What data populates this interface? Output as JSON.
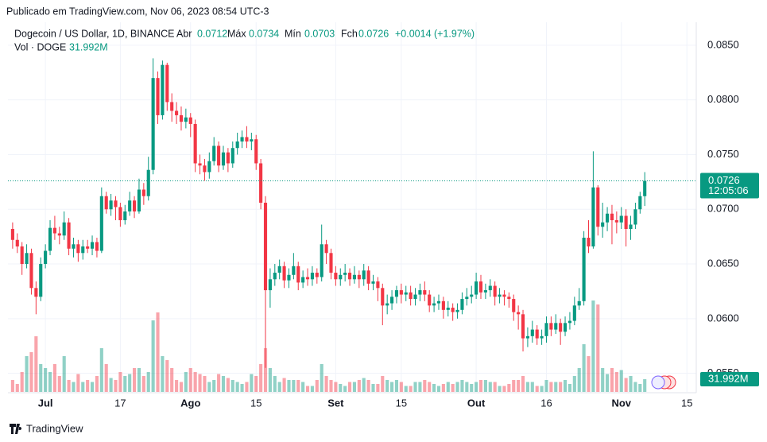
{
  "header": {
    "published": "Publicado em TradingView.com, Nov 06, 2023 08:54 UTC-3",
    "symbol": "Dogecoin / US Dollar, 1D, BINANCE",
    "open_label": "Abr",
    "high_label": "Máx",
    "low_label": "Mín",
    "close_label": "Fch",
    "change": "+0.0014 (+1.97%)",
    "volume_title": "Vol · DOGE",
    "volume": "31.992M",
    "countdown": "12:05:06"
  },
  "footer": {
    "brand": "TradingView"
  },
  "chart_data": {
    "type": "candlestick",
    "x": [
      "2023-06-24",
      "2023-06-25",
      "2023-06-26",
      "2023-06-27",
      "2023-06-28",
      "2023-06-29",
      "2023-06-30",
      "2023-07-01",
      "2023-07-02",
      "2023-07-03",
      "2023-07-04",
      "2023-07-05",
      "2023-07-06",
      "2023-07-07",
      "2023-07-08",
      "2023-07-09",
      "2023-07-10",
      "2023-07-11",
      "2023-07-12",
      "2023-07-13",
      "2023-07-14",
      "2023-07-15",
      "2023-07-16",
      "2023-07-17",
      "2023-07-18",
      "2023-07-19",
      "2023-07-20",
      "2023-07-21",
      "2023-07-22",
      "2023-07-23",
      "2023-07-24",
      "2023-07-25",
      "2023-07-26",
      "2023-07-27",
      "2023-07-28",
      "2023-07-29",
      "2023-07-30",
      "2023-07-31",
      "2023-08-01",
      "2023-08-02",
      "2023-08-03",
      "2023-08-04",
      "2023-08-05",
      "2023-08-06",
      "2023-08-07",
      "2023-08-08",
      "2023-08-09",
      "2023-08-10",
      "2023-08-11",
      "2023-08-12",
      "2023-08-13",
      "2023-08-14",
      "2023-08-15",
      "2023-08-16",
      "2023-08-17",
      "2023-08-18",
      "2023-08-19",
      "2023-08-20",
      "2023-08-21",
      "2023-08-22",
      "2023-08-23",
      "2023-08-24",
      "2023-08-25",
      "2023-08-26",
      "2023-08-27",
      "2023-08-28",
      "2023-08-29",
      "2023-08-30",
      "2023-08-31",
      "2023-09-01",
      "2023-09-02",
      "2023-09-03",
      "2023-09-04",
      "2023-09-05",
      "2023-09-06",
      "2023-09-07",
      "2023-09-08",
      "2023-09-09",
      "2023-09-10",
      "2023-09-11",
      "2023-09-12",
      "2023-09-13",
      "2023-09-14",
      "2023-09-15",
      "2023-09-16",
      "2023-09-17",
      "2023-09-18",
      "2023-09-19",
      "2023-09-20",
      "2023-09-21",
      "2023-09-22",
      "2023-09-23",
      "2023-09-24",
      "2023-09-25",
      "2023-09-26",
      "2023-09-27",
      "2023-09-28",
      "2023-09-29",
      "2023-09-30",
      "2023-10-01",
      "2023-10-02",
      "2023-10-03",
      "2023-10-04",
      "2023-10-05",
      "2023-10-06",
      "2023-10-07",
      "2023-10-08",
      "2023-10-09",
      "2023-10-10",
      "2023-10-11",
      "2023-10-12",
      "2023-10-13",
      "2023-10-14",
      "2023-10-15",
      "2023-10-16",
      "2023-10-17",
      "2023-10-18",
      "2023-10-19",
      "2023-10-20",
      "2023-10-21",
      "2023-10-22",
      "2023-10-23",
      "2023-10-24",
      "2023-10-25",
      "2023-10-26",
      "2023-10-27",
      "2023-10-28",
      "2023-10-29",
      "2023-10-30",
      "2023-10-31",
      "2023-11-01",
      "2023-11-02",
      "2023-11-03",
      "2023-11-04",
      "2023-11-05",
      "2023-11-06"
    ],
    "open": [
      0.0682,
      0.0672,
      0.0666,
      0.065,
      0.066,
      0.0628,
      0.062,
      0.065,
      0.0662,
      0.0683,
      0.0678,
      0.0676,
      0.0688,
      0.0664,
      0.0668,
      0.066,
      0.0666,
      0.0664,
      0.067,
      0.0662,
      0.0712,
      0.07,
      0.0708,
      0.0702,
      0.069,
      0.0698,
      0.0708,
      0.0698,
      0.0718,
      0.0712,
      0.0736,
      0.082,
      0.0786,
      0.0832,
      0.0798,
      0.079,
      0.0786,
      0.078,
      0.0784,
      0.0778,
      0.0742,
      0.074,
      0.0734,
      0.0744,
      0.0758,
      0.074,
      0.0752,
      0.0742,
      0.0756,
      0.0762,
      0.0766,
      0.0762,
      0.0764,
      0.0742,
      0.0706,
      0.0626,
      0.0636,
      0.0642,
      0.0648,
      0.0635,
      0.064,
      0.0648,
      0.0633,
      0.0638,
      0.0636,
      0.0642,
      0.0638,
      0.0668,
      0.066,
      0.0642,
      0.0636,
      0.064,
      0.0642,
      0.0636,
      0.064,
      0.0636,
      0.0644,
      0.0632,
      0.0634,
      0.0628,
      0.0612,
      0.0614,
      0.062,
      0.0626,
      0.0622,
      0.0624,
      0.0618,
      0.0622,
      0.0626,
      0.0622,
      0.0612,
      0.0614,
      0.0616,
      0.0608,
      0.061,
      0.0606,
      0.0608,
      0.0618,
      0.062,
      0.0622,
      0.0634,
      0.0624,
      0.0626,
      0.063,
      0.062,
      0.0622,
      0.062,
      0.0618,
      0.0606,
      0.0604,
      0.0582,
      0.0584,
      0.059,
      0.0582,
      0.0584,
      0.0596,
      0.059,
      0.0596,
      0.0588,
      0.0596,
      0.0598,
      0.0612,
      0.0616,
      0.0674,
      0.0666,
      0.072,
      0.0684,
      0.0688,
      0.0696,
      0.069,
      0.0688,
      0.0694,
      0.0682,
      0.0686,
      0.07,
      0.0712
    ],
    "high": [
      0.0688,
      0.0678,
      0.067,
      0.0668,
      0.0664,
      0.0634,
      0.0656,
      0.0668,
      0.069,
      0.0694,
      0.0684,
      0.0698,
      0.0692,
      0.0674,
      0.0672,
      0.0672,
      0.0672,
      0.0676,
      0.0674,
      0.072,
      0.0716,
      0.0714,
      0.0712,
      0.0706,
      0.0704,
      0.0716,
      0.0712,
      0.0728,
      0.0724,
      0.0748,
      0.0838,
      0.0826,
      0.0836,
      0.0834,
      0.0806,
      0.0798,
      0.0794,
      0.0792,
      0.0788,
      0.0782,
      0.075,
      0.0746,
      0.0752,
      0.0766,
      0.0762,
      0.0758,
      0.0756,
      0.0762,
      0.077,
      0.0772,
      0.0776,
      0.077,
      0.0768,
      0.0746,
      0.0712,
      0.0646,
      0.065,
      0.0654,
      0.0652,
      0.0646,
      0.066,
      0.0652,
      0.0644,
      0.0646,
      0.0648,
      0.0646,
      0.0686,
      0.0672,
      0.0664,
      0.0648,
      0.0646,
      0.065,
      0.0646,
      0.0648,
      0.0644,
      0.065,
      0.0648,
      0.064,
      0.0638,
      0.0632,
      0.0622,
      0.0626,
      0.063,
      0.0632,
      0.063,
      0.063,
      0.0628,
      0.0632,
      0.0634,
      0.0626,
      0.062,
      0.0622,
      0.062,
      0.0616,
      0.0614,
      0.0614,
      0.0624,
      0.0628,
      0.063,
      0.0642,
      0.064,
      0.0632,
      0.0636,
      0.0634,
      0.0628,
      0.0626,
      0.0624,
      0.0622,
      0.0612,
      0.0608,
      0.0592,
      0.0598,
      0.0594,
      0.059,
      0.0602,
      0.0602,
      0.0604,
      0.06,
      0.0602,
      0.0606,
      0.062,
      0.0628,
      0.068,
      0.069,
      0.0753,
      0.0722,
      0.0706,
      0.0702,
      0.0704,
      0.0698,
      0.0702,
      0.07,
      0.0694,
      0.0706,
      0.0716,
      0.0734
    ],
    "low": [
      0.0664,
      0.066,
      0.064,
      0.0646,
      0.0622,
      0.0604,
      0.0616,
      0.0646,
      0.0658,
      0.0672,
      0.0668,
      0.0672,
      0.0658,
      0.0656,
      0.0652,
      0.0654,
      0.066,
      0.0658,
      0.0656,
      0.066,
      0.0696,
      0.0694,
      0.069,
      0.0684,
      0.0686,
      0.0694,
      0.0692,
      0.0696,
      0.0704,
      0.0708,
      0.0732,
      0.0778,
      0.0782,
      0.079,
      0.078,
      0.0778,
      0.0772,
      0.0774,
      0.0766,
      0.0734,
      0.0732,
      0.0726,
      0.0728,
      0.074,
      0.0734,
      0.0736,
      0.0734,
      0.0738,
      0.075,
      0.0756,
      0.0756,
      0.0754,
      0.0736,
      0.07,
      0.0555,
      0.061,
      0.063,
      0.0636,
      0.0628,
      0.0628,
      0.0636,
      0.0626,
      0.0628,
      0.063,
      0.063,
      0.0632,
      0.0634,
      0.065,
      0.0636,
      0.063,
      0.063,
      0.0634,
      0.063,
      0.0632,
      0.0628,
      0.063,
      0.0626,
      0.0626,
      0.0616,
      0.0594,
      0.0604,
      0.0608,
      0.0614,
      0.0614,
      0.0616,
      0.0612,
      0.0612,
      0.0616,
      0.0616,
      0.0606,
      0.0606,
      0.0608,
      0.06,
      0.0602,
      0.0598,
      0.06,
      0.0604,
      0.0612,
      0.0614,
      0.0618,
      0.0618,
      0.0618,
      0.062,
      0.0612,
      0.0614,
      0.0612,
      0.061,
      0.0598,
      0.059,
      0.057,
      0.0574,
      0.0578,
      0.0576,
      0.0576,
      0.0578,
      0.0584,
      0.0586,
      0.0576,
      0.0584,
      0.059,
      0.0594,
      0.0608,
      0.0612,
      0.066,
      0.0664,
      0.0676,
      0.0674,
      0.068,
      0.0668,
      0.0678,
      0.0682,
      0.0666,
      0.0672,
      0.0682,
      0.0696,
      0.0703
    ],
    "close": [
      0.0672,
      0.0666,
      0.065,
      0.066,
      0.0628,
      0.062,
      0.065,
      0.0662,
      0.0683,
      0.0678,
      0.0676,
      0.0688,
      0.0664,
      0.0668,
      0.066,
      0.0666,
      0.0664,
      0.067,
      0.0662,
      0.0712,
      0.07,
      0.0708,
      0.0702,
      0.069,
      0.0698,
      0.0708,
      0.0698,
      0.0718,
      0.0712,
      0.0736,
      0.082,
      0.0786,
      0.0832,
      0.0798,
      0.079,
      0.0786,
      0.078,
      0.0784,
      0.0778,
      0.0742,
      0.074,
      0.0734,
      0.0744,
      0.0758,
      0.074,
      0.0752,
      0.0742,
      0.0756,
      0.0762,
      0.0766,
      0.0762,
      0.0764,
      0.0742,
      0.0706,
      0.0626,
      0.0636,
      0.0642,
      0.0648,
      0.0635,
      0.064,
      0.0648,
      0.0633,
      0.0638,
      0.0636,
      0.0642,
      0.0638,
      0.0668,
      0.066,
      0.0642,
      0.0636,
      0.064,
      0.0642,
      0.0636,
      0.064,
      0.0636,
      0.0644,
      0.0632,
      0.0634,
      0.0628,
      0.0612,
      0.0614,
      0.062,
      0.0626,
      0.0622,
      0.0624,
      0.0618,
      0.0622,
      0.0626,
      0.0622,
      0.0612,
      0.0614,
      0.0616,
      0.0608,
      0.061,
      0.0606,
      0.0608,
      0.0618,
      0.062,
      0.0622,
      0.0634,
      0.0624,
      0.0626,
      0.063,
      0.062,
      0.0622,
      0.062,
      0.0618,
      0.0606,
      0.0604,
      0.0582,
      0.0584,
      0.059,
      0.0582,
      0.0584,
      0.0596,
      0.059,
      0.0596,
      0.0588,
      0.0596,
      0.0598,
      0.0612,
      0.0616,
      0.0674,
      0.0666,
      0.072,
      0.0684,
      0.0688,
      0.0696,
      0.069,
      0.0688,
      0.0694,
      0.0682,
      0.0686,
      0.07,
      0.0712,
      0.0726
    ],
    "volume": [
      30,
      20,
      50,
      90,
      100,
      140,
      70,
      60,
      50,
      70,
      40,
      90,
      30,
      25,
      45,
      25,
      30,
      25,
      40,
      110,
      70,
      35,
      30,
      50,
      40,
      45,
      60,
      60,
      40,
      50,
      180,
      200,
      90,
      80,
      60,
      30,
      25,
      50,
      60,
      50,
      45,
      40,
      25,
      30,
      45,
      40,
      35,
      30,
      25,
      20,
      25,
      45,
      40,
      70,
      110,
      60,
      40,
      25,
      35,
      30,
      30,
      30,
      25,
      15,
      15,
      30,
      70,
      40,
      30,
      25,
      20,
      15,
      25,
      25,
      30,
      35,
      30,
      20,
      20,
      40,
      30,
      25,
      30,
      25,
      15,
      15,
      25,
      25,
      30,
      25,
      20,
      15,
      20,
      25,
      20,
      25,
      30,
      25,
      20,
      25,
      30,
      30,
      25,
      25,
      15,
      15,
      20,
      30,
      30,
      40,
      25,
      25,
      15,
      15,
      30,
      25,
      25,
      25,
      30,
      20,
      40,
      60,
      120,
      90,
      230,
      220,
      60,
      45,
      60,
      50,
      55,
      35,
      40,
      25,
      20,
      31.992
    ],
    "up_color": "#089981",
    "down_color": "#f23645",
    "xlim": [
      "2023-06-23",
      "2023-11-17"
    ],
    "xticks": [
      {
        "value": "2023-07-01",
        "label": "Jul"
      },
      {
        "value": "2023-07-17",
        "label": "17"
      },
      {
        "value": "2023-08-01",
        "label": "Ago"
      },
      {
        "value": "2023-08-15",
        "label": "15"
      },
      {
        "value": "2023-09-01",
        "label": "Set"
      },
      {
        "value": "2023-09-15",
        "label": "15"
      },
      {
        "value": "2023-10-01",
        "label": "Out"
      },
      {
        "value": "2023-10-16",
        "label": "16"
      },
      {
        "value": "2023-11-01",
        "label": "Nov"
      },
      {
        "value": "2023-11-15",
        "label": "15"
      }
    ],
    "ylim": [
      0.0533,
      0.0871
    ],
    "yticks": [
      {
        "value": 0.055,
        "label": "0.0550"
      },
      {
        "value": 0.06,
        "label": "0.0600"
      },
      {
        "value": 0.065,
        "label": "0.0650"
      },
      {
        "value": 0.07,
        "label": "0.0700"
      },
      {
        "value": 0.075,
        "label": "0.0750"
      },
      {
        "value": 0.08,
        "label": "0.0800"
      },
      {
        "value": 0.085,
        "label": "0.0850"
      }
    ],
    "y2lim": [
      0,
      930
    ],
    "grid": true
  }
}
